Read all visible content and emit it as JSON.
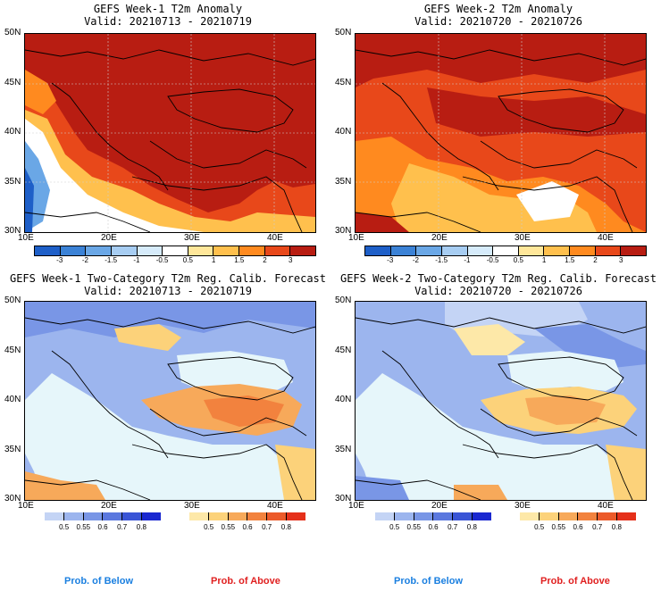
{
  "panels": [
    {
      "title": "GEFS Week-1 T2m Anomaly",
      "valid": "Valid: 20210713 - 20210719",
      "kind": "anomaly"
    },
    {
      "title": "GEFS Week-2 T2m Anomaly",
      "valid": "Valid: 20210720 - 20210726",
      "kind": "anomaly"
    },
    {
      "title": "GEFS Week-1 Two-Category T2m Reg. Calib. Forecast",
      "valid": "Valid: 20210713 - 20210719",
      "kind": "prob"
    },
    {
      "title": "GEFS Week-2 Two-Category T2m Reg. Calib. Forecast",
      "valid": "Valid: 20210720 - 20210726",
      "kind": "prob"
    }
  ],
  "lat_labels": [
    "50N",
    "45N",
    "40N",
    "35N",
    "30N"
  ],
  "lon_labels": [
    "10E",
    "20E",
    "30E",
    "40E"
  ],
  "anomaly_colorbar": {
    "labels": [
      "-3",
      "-2",
      "-1.5",
      "-1",
      "-0.5",
      "0.5",
      "1",
      "1.5",
      "2",
      "3"
    ],
    "colors": [
      "#1e5fc8",
      "#3b82d6",
      "#6aa7e6",
      "#a7cdf2",
      "#d6ebfa",
      "#ffffff",
      "#ffe79a",
      "#ffc04d",
      "#ff8a1f",
      "#e8481a",
      "#b81d12"
    ]
  },
  "prob_below_colorbar": {
    "labels": [
      "0.5",
      "0.55",
      "0.6",
      "0.7",
      "0.8"
    ],
    "colors": [
      "#c4d4f5",
      "#9cb5ee",
      "#7996e6",
      "#5b78df",
      "#3a55d6",
      "#1a28d0"
    ]
  },
  "prob_above_colorbar": {
    "labels": [
      "0.5",
      "0.55",
      "0.6",
      "0.7",
      "0.8"
    ],
    "colors": [
      "#fde8a8",
      "#fcd27a",
      "#f7a95a",
      "#f2823e",
      "#ec5a2a",
      "#e5301a"
    ]
  },
  "legend": {
    "below": "Prob. of Below",
    "above": "Prob. of Above",
    "below_color": "#1a7fe0",
    "above_color": "#e02020"
  }
}
